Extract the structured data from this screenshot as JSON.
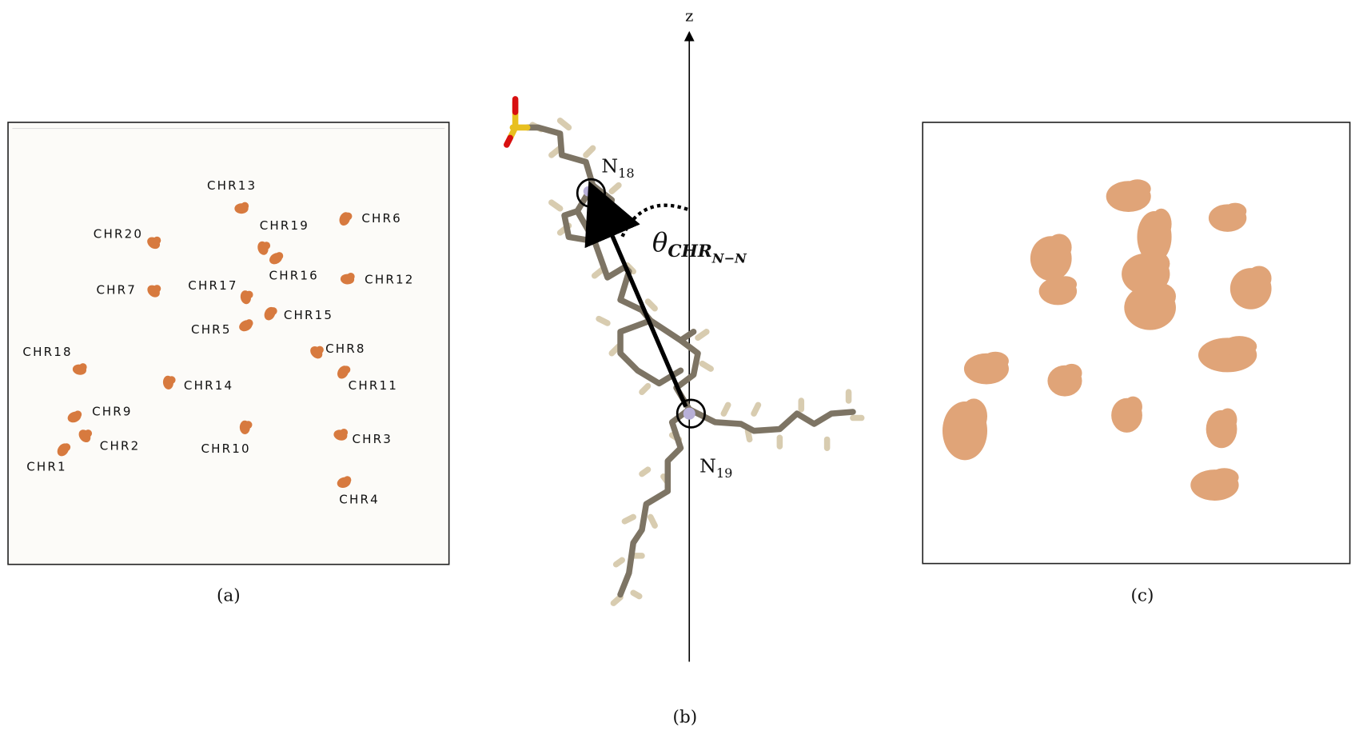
{
  "panel_a": {
    "caption": "(a)",
    "labels": [
      "CHR13",
      "CHR20",
      "CHR19",
      "CHR6",
      "CHR16",
      "CHR12",
      "CHR7",
      "CHR17",
      "CHR15",
      "CHR5",
      "CHR18",
      "CHR8",
      "CHR14",
      "CHR11",
      "CHR9",
      "CHR3",
      "CHR2",
      "CHR10",
      "CHR1",
      "CHR4"
    ]
  },
  "panel_b": {
    "caption": "(b)",
    "axis_label": "z",
    "n_top": {
      "base": "N",
      "sub": "18"
    },
    "n_bottom": {
      "base": "N",
      "sub": "19"
    },
    "angle": {
      "symbol": "θ",
      "sub": "CHR",
      "subsub": "N−N"
    }
  },
  "panel_c": {
    "caption": "(c)"
  }
}
